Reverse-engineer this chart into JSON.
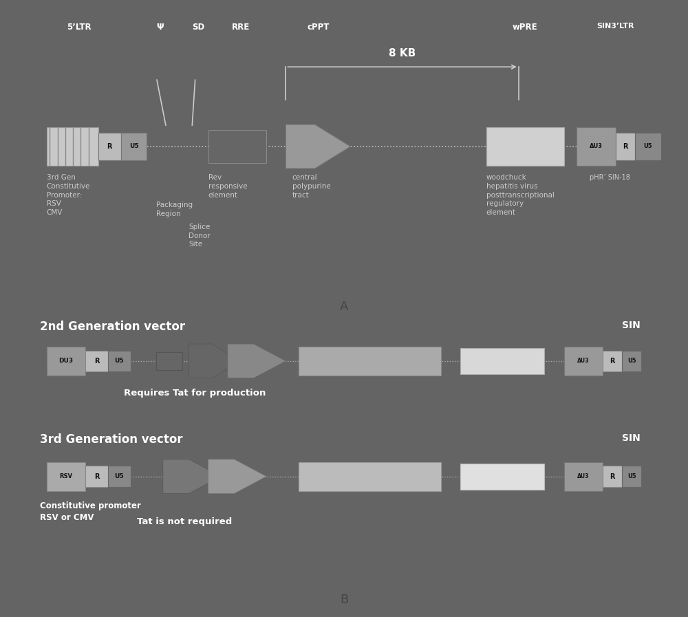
{
  "bg_color": "#2e2e2e",
  "panel_bg_A": "#2a2a2a",
  "panel_bg_B": "#333333",
  "text_color": "#ffffff",
  "figure_width": 10.0,
  "figure_height": 8.97,
  "panel_A_label": "A",
  "panel_B_label": "B",
  "panel_A_title_label": "3rd Gen\nConstitutive\nPromoter:\nRSV\nCMV",
  "panel_A_psi_label": "Ψ",
  "panel_A_sd_label": "SD",
  "panel_A_rre_label": "RRE",
  "panel_A_cppt_label": "cPPT",
  "panel_A_wpre_label": "wPRE",
  "panel_A_sin3ltr_label": "SIN3’LTR",
  "panel_A_5ltr_label": "5’LTR",
  "panel_A_8kb_label": "8 KB",
  "panel_A_phr_label": "pHR’ SIN-18",
  "panel_A_rev_label": "Rev\nresponsive\nelement",
  "panel_A_pack_label": "Packaging\nRegion",
  "panel_A_splice_label": "Splice\nDonor\nSite",
  "panel_A_central_label": "central\npolypurine\ntract",
  "panel_A_woodchuck_label": "woodchuck\nhepatitis virus\nposttranscriptional\nregulatory\nelement",
  "panel_B_2gen_label": "2nd Generation vector",
  "panel_B_3gen_label": "3rd Generation vector",
  "panel_B_sin_label": "SIN",
  "panel_B_tat_req_label": "Requires Tat for production",
  "panel_B_tat_not_label": "Tat is not required",
  "panel_B_const_label": "Constitutive promoter\nRSV or CMV"
}
